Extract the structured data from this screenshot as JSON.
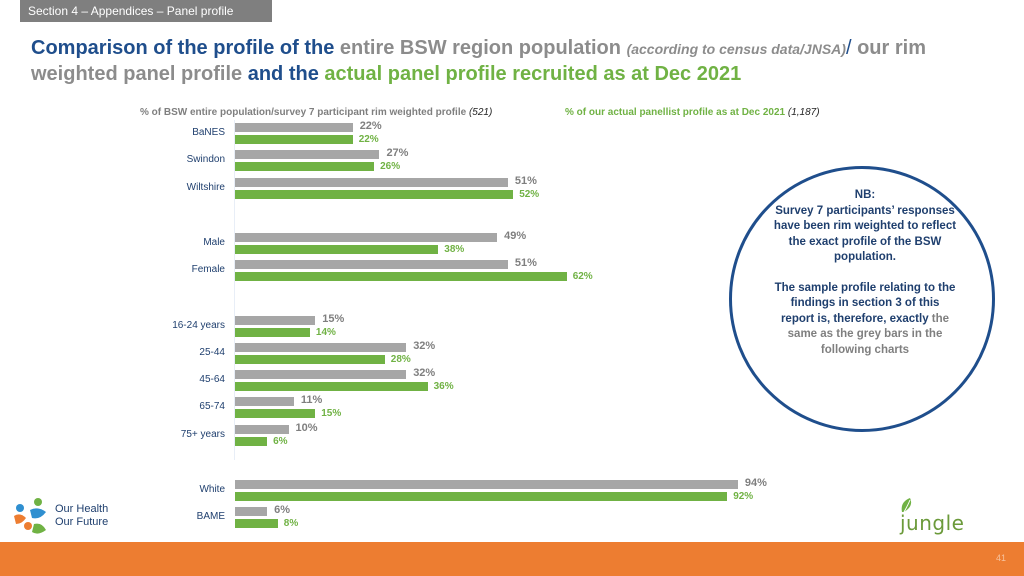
{
  "section": "Section 4 – Appendices – Panel profile",
  "title": {
    "part1": "Comparison of the profile of the ",
    "part2": "entire BSW region population ",
    "part3": "(according to census data/JNSA)",
    "part4": "/ ",
    "part5": "our rim weighted panel profile ",
    "part6": "and the ",
    "part7": "actual panel profile recruited as at Dec 2021"
  },
  "legend": {
    "grey_text": "% of BSW entire population/survey 7 participant rim weighted profile ",
    "grey_n": "(521)",
    "green_text": "% of our actual panellist profile as at Dec 2021 ",
    "green_n": "(1,187)"
  },
  "colors": {
    "grey": "#a6a6a6",
    "green": "#70b244",
    "navy": "#1f4e8c",
    "orange": "#ed7d31"
  },
  "chart_data": {
    "type": "bar",
    "orientation": "horizontal",
    "series": [
      {
        "name": "% of BSW entire population/survey 7 participant rim weighted profile (521)",
        "values": [
          22,
          27,
          51,
          49,
          51,
          15,
          32,
          32,
          11,
          10,
          94,
          6
        ]
      },
      {
        "name": "% of our actual panellist profile as at Dec 2021 (1,187)",
        "values": [
          22,
          26,
          52,
          38,
          62,
          14,
          28,
          36,
          15,
          6,
          92,
          8
        ]
      }
    ],
    "categories": [
      "BaNES",
      "Swindon",
      "Wiltshire",
      "Male",
      "Female",
      "16-24 years",
      "25-44",
      "45-64",
      "65-74",
      "75+ years",
      "White",
      "BAME"
    ],
    "value_labels": {
      "grey": [
        "22%",
        "27%",
        "51%",
        "49%",
        "51%",
        "15%",
        "32%",
        "32%",
        "11%",
        "10%",
        "94%",
        "6%"
      ],
      "green": [
        "22%",
        "26%",
        "52%",
        "38%",
        "62%",
        "14%",
        "28%",
        "36%",
        "15%",
        "6%",
        "92%",
        "8%"
      ]
    },
    "xlim": [
      0,
      100
    ],
    "grid": false
  },
  "nb": {
    "heading": "NB:",
    "para1": "Survey 7 participants’ responses have been rim weighted to reflect the exact profile of the BSW population.",
    "para2_main": "The sample profile relating to the findings in section 3 of this report is, therefore, exactly ",
    "para2_fade": "the same as the grey bars in the following charts"
  },
  "logos": {
    "left_line1": "Our Health",
    "left_line2": "Our Future",
    "right": "jungle green"
  },
  "page_number": "41"
}
